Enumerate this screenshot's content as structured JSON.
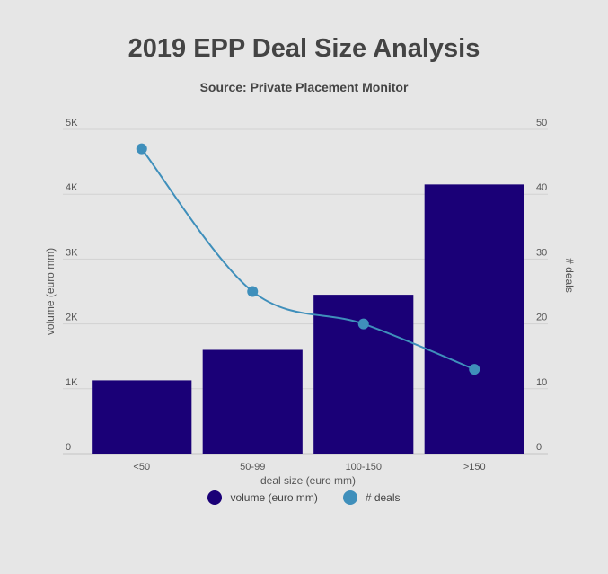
{
  "chart_data": {
    "type": "bar",
    "title": "2019 EPP Deal Size Analysis",
    "subtitle": "Source: Private Placement Monitor",
    "xlabel": "deal size (euro mm)",
    "ylabel_left": "volume (euro mm)",
    "ylabel_right": "# deals",
    "categories": [
      "<50",
      "50-99",
      "100-150",
      ">150"
    ],
    "series": [
      {
        "name": "volume (euro mm)",
        "type": "bar",
        "axis": "left",
        "color": "#1a0077",
        "values": [
          1130,
          1600,
          2450,
          4150
        ]
      },
      {
        "name": "# deals",
        "type": "line",
        "axis": "right",
        "color": "#3f8fbb",
        "values": [
          47,
          25,
          20,
          13
        ]
      }
    ],
    "ylim_left": [
      0,
      5000
    ],
    "ylim_right": [
      0,
      50
    ],
    "yticks_left": [
      "0",
      "1K",
      "2K",
      "3K",
      "4K",
      "5K"
    ],
    "yticks_right": [
      "0",
      "10",
      "20",
      "30",
      "40",
      "50"
    ],
    "grid": true,
    "legend_position": "bottom"
  }
}
